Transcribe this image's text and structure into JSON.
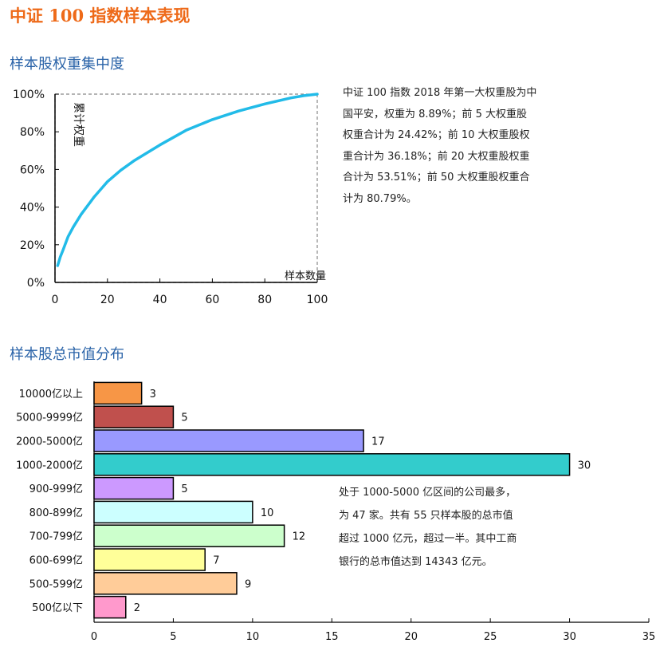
{
  "page": {
    "title": "中证 100 指数样本表现"
  },
  "section1": {
    "title": "样本股权重集中度",
    "note": [
      "中证 100 指数 2018 年第一大权重股为中",
      "国平安，权重为 8.89%；前 5 大权重股",
      "权重合计为 24.42%；前 10 大权重股权",
      "重合计为 36.18%；前 20 大权重股权重",
      "合计为 53.51%；前 50 大权重股权重合",
      "计为 80.79%。"
    ]
  },
  "section2": {
    "title": "样本股总市值分布",
    "note": [
      "处于 1000-5000 亿区间的公司最多，",
      "为 47 家。共有 55 只样本股的总市值",
      "超过 1000 亿元，超过一半。其中工商",
      "银行的总市值达到 14343 亿元。"
    ]
  },
  "chart_data": [
    {
      "type": "line",
      "ylabel": "累计权重",
      "xlabel": "样本数量",
      "xlim": [
        0,
        100
      ],
      "ylim": [
        0,
        100
      ],
      "xticks": [
        "0",
        "20",
        "40",
        "60",
        "80",
        "100"
      ],
      "yticks": [
        "0%",
        "20%",
        "40%",
        "60%",
        "80%",
        "100%"
      ],
      "grid": false,
      "series": [
        {
          "color": "#22bbe8",
          "x": [
            1,
            2,
            3,
            5,
            7,
            10,
            15,
            20,
            25,
            30,
            40,
            50,
            60,
            70,
            80,
            90,
            95,
            100
          ],
          "y": [
            8.89,
            13.5,
            17.0,
            24.42,
            29.5,
            36.18,
            45.5,
            53.51,
            59.5,
            64.5,
            73.0,
            80.79,
            86.5,
            91.0,
            94.8,
            98.0,
            99.2,
            100
          ]
        }
      ]
    },
    {
      "type": "bar",
      "orientation": "horizontal",
      "categories": [
        "10000亿以上",
        "5000-9999亿",
        "2000-5000亿",
        "1000-2000亿",
        "900-999亿",
        "800-899亿",
        "700-799亿",
        "600-699亿",
        "500-599亿",
        "500亿以下"
      ],
      "values": [
        3,
        5,
        17,
        30,
        5,
        10,
        12,
        7,
        9,
        2
      ],
      "colors": [
        "#f79646",
        "#c0504d",
        "#9999ff",
        "#33cccc",
        "#cc99ff",
        "#ccffff",
        "#ccffcc",
        "#ffff99",
        "#ffcc99",
        "#ff99cc"
      ],
      "xlim": [
        0,
        35
      ],
      "xticks": [
        "0",
        "5",
        "10",
        "15",
        "20",
        "25",
        "30",
        "35"
      ],
      "grid": false,
      "show_value_labels": true
    }
  ]
}
